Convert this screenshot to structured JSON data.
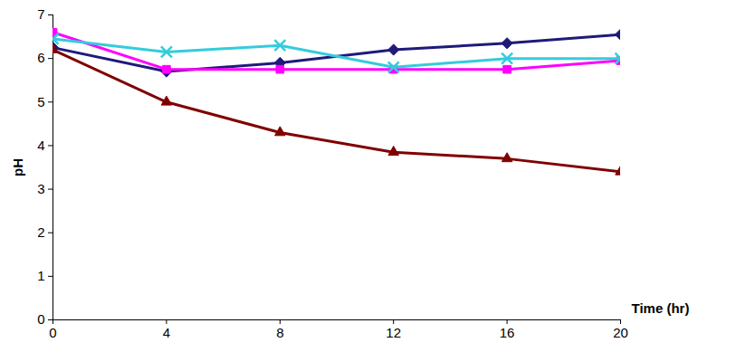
{
  "chart_data": {
    "type": "line",
    "x": [
      0,
      4,
      8,
      12,
      16,
      20
    ],
    "xlabel": "Time (hr)",
    "ylabel": "pH",
    "xlim": [
      0,
      20
    ],
    "ylim": [
      0,
      7
    ],
    "xticks": [
      0,
      4,
      8,
      12,
      16,
      20
    ],
    "yticks": [
      0,
      1,
      2,
      3,
      4,
      5,
      6,
      7
    ],
    "grid": false,
    "series": [
      {
        "color": "#1f1a7a",
        "marker": "diamond",
        "values": [
          6.25,
          5.7,
          5.9,
          6.2,
          6.35,
          6.55
        ]
      },
      {
        "color": "#ff00ff",
        "marker": "square",
        "values": [
          6.6,
          5.75,
          5.75,
          5.75,
          5.75,
          5.95
        ]
      },
      {
        "color": "#33ccdd",
        "marker": "x",
        "values": [
          6.45,
          6.15,
          6.3,
          5.8,
          6.0,
          6.0
        ]
      },
      {
        "color": "#800000",
        "marker": "triangle",
        "values": [
          6.2,
          5.0,
          4.3,
          3.85,
          3.7,
          3.4
        ]
      }
    ]
  }
}
